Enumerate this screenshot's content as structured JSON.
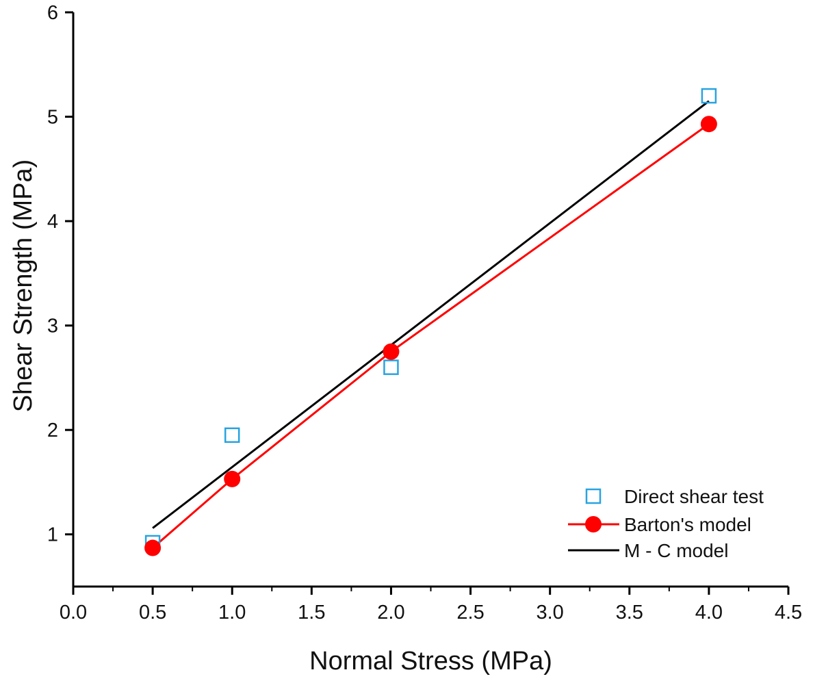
{
  "chart_data": {
    "type": "scatter",
    "title": "",
    "xlabel": "Normal Stress (MPa)",
    "ylabel": "Shear Strength (MPa)",
    "xlim": [
      0.0,
      4.5
    ],
    "ylim": [
      0.5,
      6.0
    ],
    "x_ticks": [
      "0.0",
      "0.5",
      "1.0",
      "1.5",
      "2.0",
      "2.5",
      "3.0",
      "3.5",
      "4.0",
      "4.5"
    ],
    "y_ticks": [
      "1",
      "2",
      "3",
      "4",
      "5",
      "6"
    ],
    "grid": false,
    "legend_position": "bottom-right",
    "series": [
      {
        "name": "Direct shear test",
        "kind": "marker-open-square",
        "color": "#29a3e0",
        "x": [
          0.5,
          1.0,
          2.0,
          4.0
        ],
        "y": [
          0.92,
          1.95,
          2.6,
          5.2
        ]
      },
      {
        "name": "Barton's model",
        "kind": "line-marker-circle",
        "color": "#ff0000",
        "x": [
          0.5,
          1.0,
          2.0,
          4.0
        ],
        "y": [
          0.87,
          1.53,
          2.75,
          4.93
        ]
      },
      {
        "name": "M - C model",
        "kind": "line",
        "color": "#000000",
        "x": [
          0.5,
          4.0
        ],
        "y": [
          1.06,
          5.15
        ]
      }
    ]
  }
}
